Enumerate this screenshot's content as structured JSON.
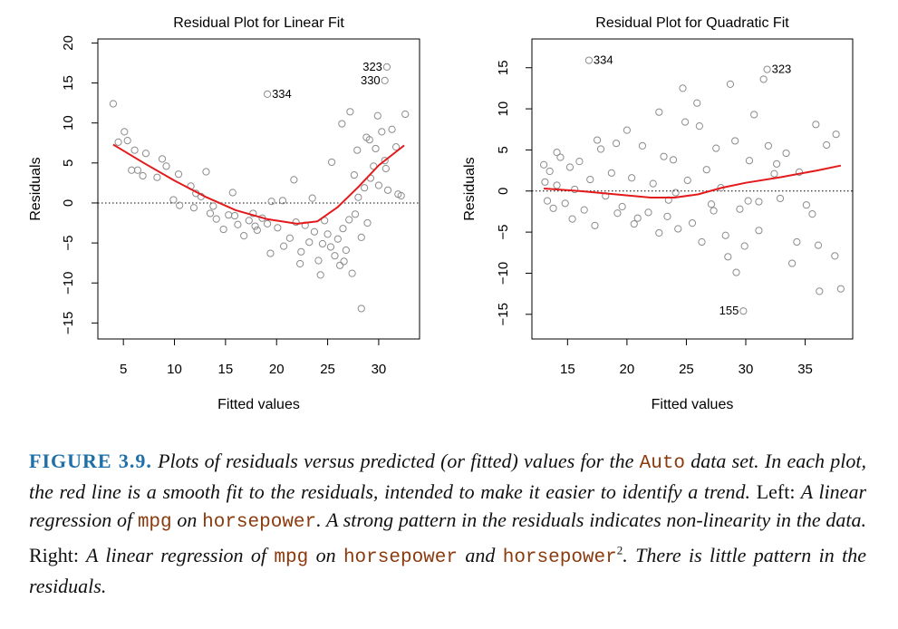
{
  "chart_data": [
    {
      "type": "scatter",
      "title": "Residual Plot for Linear Fit",
      "xlabel": "Fitted values",
      "ylabel": "Residuals",
      "xlim": [
        2.5,
        34
      ],
      "ylim": [
        -17,
        20.5
      ],
      "xticks": [
        5,
        10,
        15,
        20,
        25,
        30
      ],
      "yticks": [
        -15,
        -10,
        -5,
        0,
        5,
        10,
        15,
        20
      ],
      "reference_line": {
        "y": 0,
        "style": "dotted"
      },
      "smooth_fit": {
        "color": "#e31a1c",
        "x": [
          4,
          7,
          10,
          13,
          16,
          19,
          22,
          24,
          26,
          28,
          30,
          32.5
        ],
        "y": [
          7.3,
          5,
          2.8,
          0.8,
          -0.9,
          -2,
          -2.6,
          -2.3,
          -0.5,
          2,
          4.7,
          7.2
        ]
      },
      "point_color": "#8c8c8c",
      "labeled_points": [
        {
          "label": "323",
          "x": 30.8,
          "y": 17
        },
        {
          "label": "330",
          "x": 30.6,
          "y": 15.3
        },
        {
          "label": "334",
          "x": 19.1,
          "y": 13.6
        }
      ],
      "points": {
        "x": [
          4,
          4.5,
          5.1,
          5.4,
          5.8,
          6.1,
          6.4,
          6.9,
          7.2,
          8.3,
          8.8,
          9.2,
          9.9,
          10.4,
          10.5,
          11.6,
          11.9,
          12.6,
          13.1,
          13.5,
          14.1,
          14.8,
          15.3,
          15.7,
          16.2,
          16.8,
          17.3,
          17.7,
          18.1,
          18.6,
          19.1,
          19.4,
          20.1,
          20.6,
          21.3,
          21.9,
          22.4,
          22.8,
          23.2,
          23.7,
          24.1,
          24.5,
          25,
          25.3,
          25.7,
          26,
          26.2,
          26.5,
          26.8,
          27.1,
          27.4,
          27.7,
          28,
          28.3,
          28.6,
          28.9,
          29.2,
          29.5,
          29.7,
          30,
          30.3,
          30.6,
          30.9,
          31.3,
          31.7,
          32.2,
          32.6,
          19.5,
          21.7,
          23.5,
          24.7,
          25.4,
          26.4,
          27.2,
          27.9,
          29.1,
          30.7,
          31.9,
          28.3,
          26.6,
          24.3,
          22.3,
          20.7,
          17.9,
          15.9,
          13.8,
          12.1,
          28.8,
          29.9,
          27.6
        ],
        "y": [
          12.4,
          7.6,
          8.9,
          7.8,
          4.1,
          6.6,
          4.1,
          3.4,
          6.2,
          3.2,
          5.5,
          4.6,
          0.4,
          3.6,
          -0.3,
          2.1,
          -0.6,
          0.8,
          3.9,
          -1.3,
          -2,
          -3.3,
          -1.5,
          1.3,
          -2.7,
          -4.1,
          -2.2,
          -1.3,
          -3.4,
          -1.9,
          -2.6,
          -6.3,
          -3.1,
          0.3,
          -4.4,
          -2.4,
          -6.1,
          -2.8,
          -4.9,
          -3.6,
          -7.2,
          -5.1,
          -3.9,
          -5.5,
          -6.6,
          -4.5,
          -7.8,
          -3.2,
          -5.9,
          -2.1,
          -8.8,
          -1.4,
          0.7,
          -4.3,
          1.9,
          -2.5,
          3.1,
          4.6,
          6.8,
          2.2,
          8.9,
          5.3,
          1.6,
          9.2,
          7,
          0.9,
          11.1,
          0.2,
          2.9,
          0.6,
          -2.2,
          5.1,
          9.9,
          11.4,
          6.6,
          7.9,
          4.3,
          1.1,
          -13.2,
          -7.3,
          -9,
          -7.6,
          -5.4,
          -2.9,
          -1.6,
          -0.4,
          1.2,
          8.2,
          10.9,
          3.5
        ]
      }
    },
    {
      "type": "scatter",
      "title": "Residual Plot for Quadratic Fit",
      "xlabel": "Fitted values",
      "ylabel": "Residuals",
      "xlim": [
        12,
        39
      ],
      "ylim": [
        -18,
        18.5
      ],
      "xticks": [
        15,
        20,
        25,
        30,
        35
      ],
      "yticks": [
        -15,
        -10,
        -5,
        0,
        5,
        10,
        15
      ],
      "reference_line": {
        "y": 0,
        "style": "dotted"
      },
      "smooth_fit": {
        "color": "#e31a1c",
        "x": [
          13,
          16,
          19,
          22,
          24,
          26,
          28,
          30,
          33,
          36,
          38
        ],
        "y": [
          0.3,
          0,
          -0.4,
          -0.8,
          -0.8,
          -0.4,
          0.4,
          1,
          1.7,
          2.5,
          3.1
        ]
      },
      "point_color": "#8c8c8c",
      "labeled_points": [
        {
          "label": "334",
          "x": 16.8,
          "y": 15.9
        },
        {
          "label": "323",
          "x": 31.8,
          "y": 14.8
        },
        {
          "label": "155",
          "x": 29.8,
          "y": -14.6
        }
      ],
      "points": {
        "x": [
          13,
          13.1,
          13.3,
          13.5,
          13.8,
          14.1,
          14.4,
          14.8,
          15.2,
          15.6,
          16,
          16.4,
          16.9,
          17.3,
          17.8,
          18.2,
          18.7,
          19.1,
          19.6,
          20,
          20.4,
          20.9,
          21.3,
          21.8,
          22.2,
          22.7,
          23.1,
          23.5,
          23.9,
          24.3,
          24.7,
          25.1,
          25.5,
          25.9,
          26.3,
          26.7,
          27.1,
          27.5,
          27.9,
          28.3,
          28.7,
          29.1,
          29.5,
          29.9,
          30.3,
          30.7,
          31.1,
          31.5,
          31.9,
          32.4,
          32.9,
          33.4,
          33.9,
          34.5,
          35.1,
          35.9,
          36.2,
          36.8,
          37.5,
          37.6,
          38,
          35.6,
          36.1,
          34.3,
          31.1,
          29.2,
          28.5,
          24.1,
          24.9,
          23.4,
          22.7,
          20.6,
          19.2,
          17.5,
          15.4,
          14.1,
          26.1,
          27.3,
          30.2,
          32.6
        ],
        "y": [
          3.2,
          1.1,
          -1.2,
          2.4,
          -2.1,
          0.7,
          4.1,
          -1.5,
          2.9,
          0.2,
          3.6,
          -2.3,
          1.4,
          -4.2,
          5.1,
          -0.6,
          2.2,
          5.8,
          -1.9,
          7.4,
          1.6,
          -3.3,
          5.5,
          -2.6,
          0.9,
          -5.1,
          4.2,
          -1.1,
          3.8,
          -4.6,
          12.5,
          1.3,
          -3.9,
          10.7,
          -6.2,
          2.6,
          -1.6,
          5.2,
          0.4,
          -5.4,
          13,
          6.1,
          -2.2,
          -6.7,
          3.7,
          9.3,
          -1.3,
          13.6,
          5.5,
          2.1,
          -0.9,
          4.6,
          -8.8,
          2.3,
          -1.7,
          8.1,
          -12.2,
          5.6,
          -7.9,
          6.9,
          -11.9,
          -2.8,
          -6.6,
          -6.2,
          -4.8,
          -9.9,
          -8,
          -0.2,
          8.4,
          -3.1,
          9.6,
          -4,
          -2.7,
          6.2,
          -3.4,
          4.7,
          7.9,
          -2.4,
          -1.2,
          3.3
        ]
      }
    }
  ],
  "caption": {
    "figure_number": "FIGURE 3.9.",
    "segments": [
      {
        "text": " Plots of residuals versus predicted (or fitted) values for the ",
        "style": "italic"
      },
      {
        "text": "Auto",
        "style": "code"
      },
      {
        "text": " data set. In each plot, the red line is a smooth fit to the residuals, intended to make it easier to identify a trend. ",
        "style": "italic"
      },
      {
        "text": "Left:",
        "style": "roman"
      },
      {
        "text": " A linear regression of ",
        "style": "italic"
      },
      {
        "text": "mpg",
        "style": "code"
      },
      {
        "text": " on ",
        "style": "italic"
      },
      {
        "text": "horsepower",
        "style": "code"
      },
      {
        "text": ". A strong pattern in the residuals indicates non-linearity in the data. ",
        "style": "italic"
      },
      {
        "text": "Right:",
        "style": "roman"
      },
      {
        "text": " A linear regression of ",
        "style": "italic"
      },
      {
        "text": "mpg",
        "style": "code"
      },
      {
        "text": " on ",
        "style": "italic"
      },
      {
        "text": "horsepower",
        "style": "code"
      },
      {
        "text": " and ",
        "style": "italic"
      },
      {
        "text": "horsepower",
        "style": "code"
      },
      {
        "text": "2",
        "style": "sup"
      },
      {
        "text": ". There is little pattern in the residuals.",
        "style": "italic"
      }
    ]
  }
}
